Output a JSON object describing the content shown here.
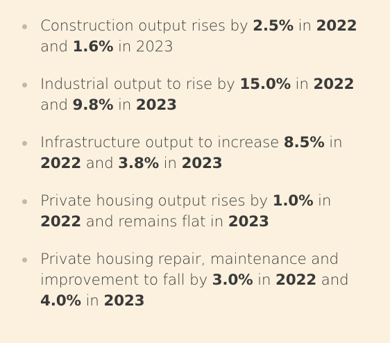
{
  "bullets": [
    {
      "segments": [
        {
          "text": "Construction output rises by ",
          "bold": false
        },
        {
          "text": "2.5%",
          "bold": true
        },
        {
          "text": " in ",
          "bold": false
        },
        {
          "text": "2022",
          "bold": true
        },
        {
          "text": " and ",
          "bold": false
        },
        {
          "text": "1.6%",
          "bold": true
        },
        {
          "text": " in 2023",
          "bold": false
        }
      ]
    },
    {
      "segments": [
        {
          "text": "Industrial output to rise by ",
          "bold": false
        },
        {
          "text": "15.0%",
          "bold": true
        },
        {
          "text": " in ",
          "bold": false
        },
        {
          "text": "2022",
          "bold": true
        },
        {
          "text": " and ",
          "bold": false
        },
        {
          "text": "9.8%",
          "bold": true
        },
        {
          "text": " in ",
          "bold": false
        },
        {
          "text": "2023",
          "bold": true
        }
      ]
    },
    {
      "segments": [
        {
          "text": "Infrastructure output to increase ",
          "bold": false
        },
        {
          "text": "8.5%",
          "bold": true
        },
        {
          "text": " in ",
          "bold": false
        },
        {
          "text": "2022",
          "bold": true
        },
        {
          "text": " and ",
          "bold": false
        },
        {
          "text": "3.8%",
          "bold": true
        },
        {
          "text": " in ",
          "bold": false
        },
        {
          "text": "2023",
          "bold": true
        }
      ]
    },
    {
      "segments": [
        {
          "text": "Private housing output rises by ",
          "bold": false
        },
        {
          "text": "1.0%",
          "bold": true
        },
        {
          "text": " in ",
          "bold": false
        },
        {
          "text": "2022",
          "bold": true
        },
        {
          "text": " and remains flat in ",
          "bold": false
        },
        {
          "text": "2023",
          "bold": true
        }
      ]
    },
    {
      "segments": [
        {
          "text": "Private housing repair, maintenance and improvement to fall by ",
          "bold": false
        },
        {
          "text": "3.0%",
          "bold": true
        },
        {
          "text": " in ",
          "bold": false
        },
        {
          "text": "2022",
          "bold": true
        },
        {
          "text": " and ",
          "bold": false
        },
        {
          "text": "4.0%",
          "bold": true
        },
        {
          "text": " in ",
          "bold": false
        },
        {
          "text": "2023",
          "bold": true
        }
      ]
    }
  ],
  "colors": {
    "background": "#fbf1de",
    "text": "#3a3a3a",
    "bullet": "#c9b79a"
  }
}
